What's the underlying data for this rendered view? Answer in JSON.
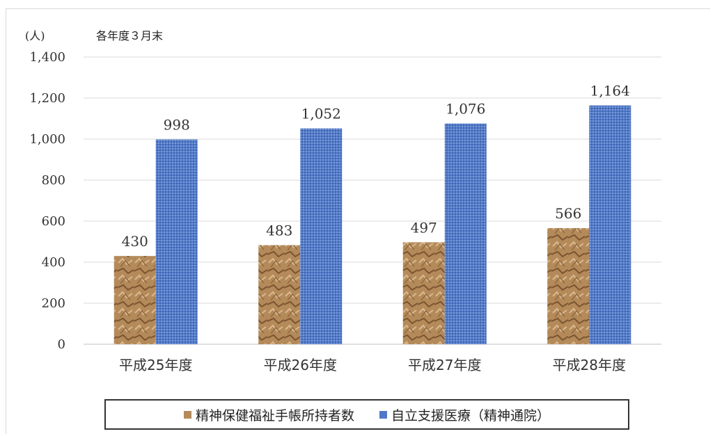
{
  "chart_data": {
    "type": "bar",
    "unit_label": "(人)",
    "note": "各年度３月末",
    "categories": [
      "平成25年度",
      "平成26年度",
      "平成27年度",
      "平成28年度"
    ],
    "series": [
      {
        "name": "精神保健福祉手帳所持者数",
        "values": [
          430,
          483,
          497,
          566
        ],
        "color": "#b58a5a"
      },
      {
        "name": "自立支援医療（精神通院）",
        "values": [
          998,
          1052,
          1076,
          1164
        ],
        "color": "#4f78c8"
      }
    ],
    "value_labels": [
      [
        "430",
        "483",
        "497",
        "566"
      ],
      [
        "998",
        "1,052",
        "1,076",
        "1,164"
      ]
    ],
    "ylim": [
      0,
      1400
    ],
    "yticks": [
      0,
      200,
      400,
      600,
      800,
      1000,
      1200,
      1400
    ],
    "ytick_labels": [
      "0",
      "200",
      "400",
      "600",
      "800",
      "1,000",
      "1,200",
      "1,400"
    ],
    "grid": true,
    "legend_position": "bottom"
  }
}
